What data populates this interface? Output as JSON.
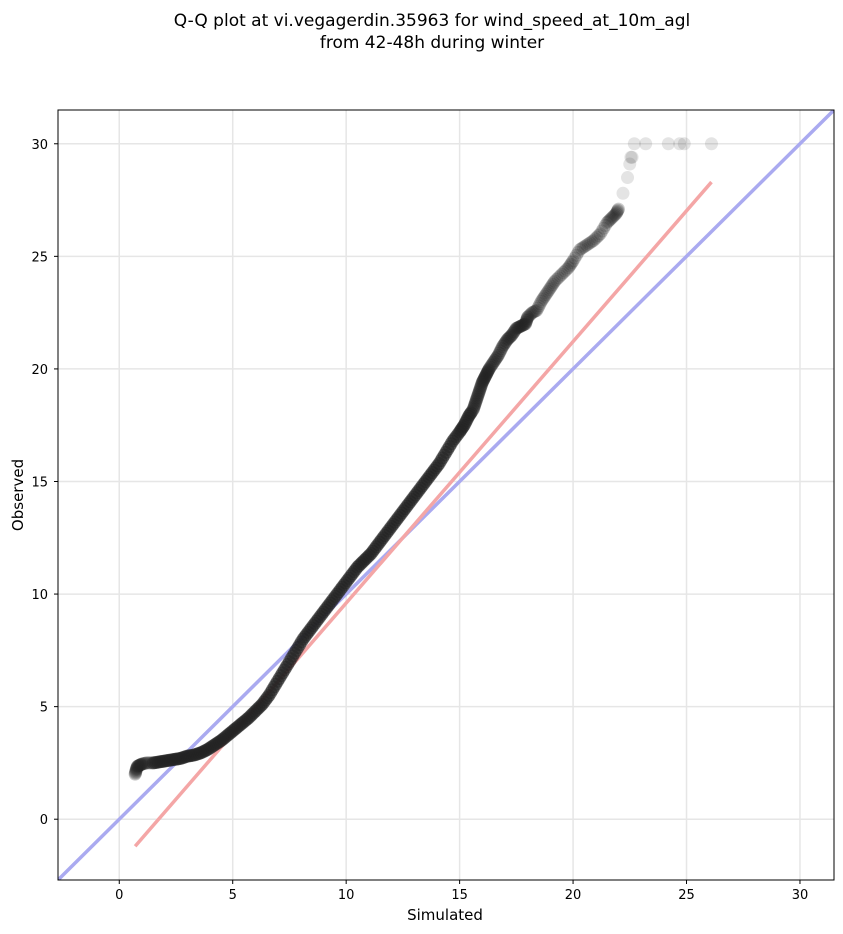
{
  "chart_data": {
    "type": "scatter",
    "title_line1": "Q-Q plot at vi.vegagerdin.35963 for wind_speed_at_10m_agl",
    "title_line2": "from 42-48h during winter",
    "xlabel": "Simulated",
    "ylabel": "Observed",
    "xlim": [
      -2.7,
      31.5
    ],
    "ylim": [
      -2.7,
      31.5
    ],
    "xticks": [
      0,
      5,
      10,
      15,
      20,
      25,
      30
    ],
    "yticks": [
      0,
      5,
      10,
      15,
      20,
      25,
      30
    ],
    "grid": true,
    "point_color": "#222222",
    "identity_line_color": "#aaaaf0",
    "fit_line_color": "#f4a6a6",
    "identity_line": {
      "x": [
        -2.7,
        31.5
      ],
      "y": [
        -2.7,
        31.5
      ]
    },
    "fit_line": {
      "x": [
        0.7,
        26.1
      ],
      "y": [
        -1.2,
        28.3
      ]
    },
    "points": {
      "x": [
        0.7,
        0.75,
        0.8,
        0.9,
        1.0,
        1.2,
        1.5,
        1.8,
        2.1,
        2.4,
        2.7,
        3.0,
        3.3,
        3.6,
        3.9,
        4.2,
        4.5,
        4.8,
        5.1,
        5.4,
        5.7,
        6.0,
        6.3,
        6.6,
        6.9,
        7.2,
        7.5,
        7.8,
        8.1,
        8.4,
        8.7,
        9.0,
        9.3,
        9.6,
        9.9,
        10.2,
        10.5,
        10.8,
        11.1,
        11.4,
        11.7,
        12.0,
        12.3,
        12.6,
        12.9,
        13.2,
        13.5,
        13.8,
        14.1,
        14.4,
        14.7,
        15.0,
        15.2,
        15.4,
        15.6,
        15.7,
        15.8,
        15.9,
        16.0,
        16.1,
        16.2,
        16.3,
        16.5,
        16.7,
        16.9,
        17.1,
        17.3,
        17.5,
        17.7,
        17.9,
        18.0,
        18.2,
        18.4,
        18.6,
        18.8,
        19.0,
        19.2,
        19.5,
        19.8,
        20.0,
        20.3,
        20.6,
        20.9,
        21.2,
        21.5,
        21.7,
        21.9,
        22.0,
        22.2,
        22.4,
        22.5,
        22.55,
        22.6,
        22.7,
        23.2,
        24.2,
        24.7,
        24.9,
        26.1
      ],
      "y": [
        2.0,
        2.2,
        2.35,
        2.4,
        2.45,
        2.5,
        2.5,
        2.55,
        2.6,
        2.65,
        2.7,
        2.8,
        2.85,
        2.95,
        3.1,
        3.3,
        3.5,
        3.75,
        4.0,
        4.25,
        4.5,
        4.8,
        5.1,
        5.5,
        6.0,
        6.5,
        7.0,
        7.5,
        8.0,
        8.4,
        8.8,
        9.2,
        9.6,
        10.0,
        10.4,
        10.8,
        11.2,
        11.5,
        11.8,
        12.2,
        12.6,
        13.0,
        13.4,
        13.8,
        14.2,
        14.6,
        15.0,
        15.4,
        15.8,
        16.3,
        16.8,
        17.2,
        17.5,
        17.9,
        18.2,
        18.5,
        18.8,
        19.1,
        19.4,
        19.6,
        19.8,
        20.0,
        20.3,
        20.6,
        21.0,
        21.3,
        21.5,
        21.8,
        21.9,
        22.0,
        22.3,
        22.5,
        22.6,
        23.0,
        23.3,
        23.6,
        23.9,
        24.2,
        24.5,
        24.8,
        25.3,
        25.5,
        25.7,
        26.0,
        26.5,
        26.7,
        26.9,
        27.1,
        27.8,
        28.5,
        29.1,
        29.4,
        29.4,
        30.0,
        30.0,
        30.0,
        30.0,
        30.0,
        30.0
      ],
      "__note": ""
    }
  }
}
